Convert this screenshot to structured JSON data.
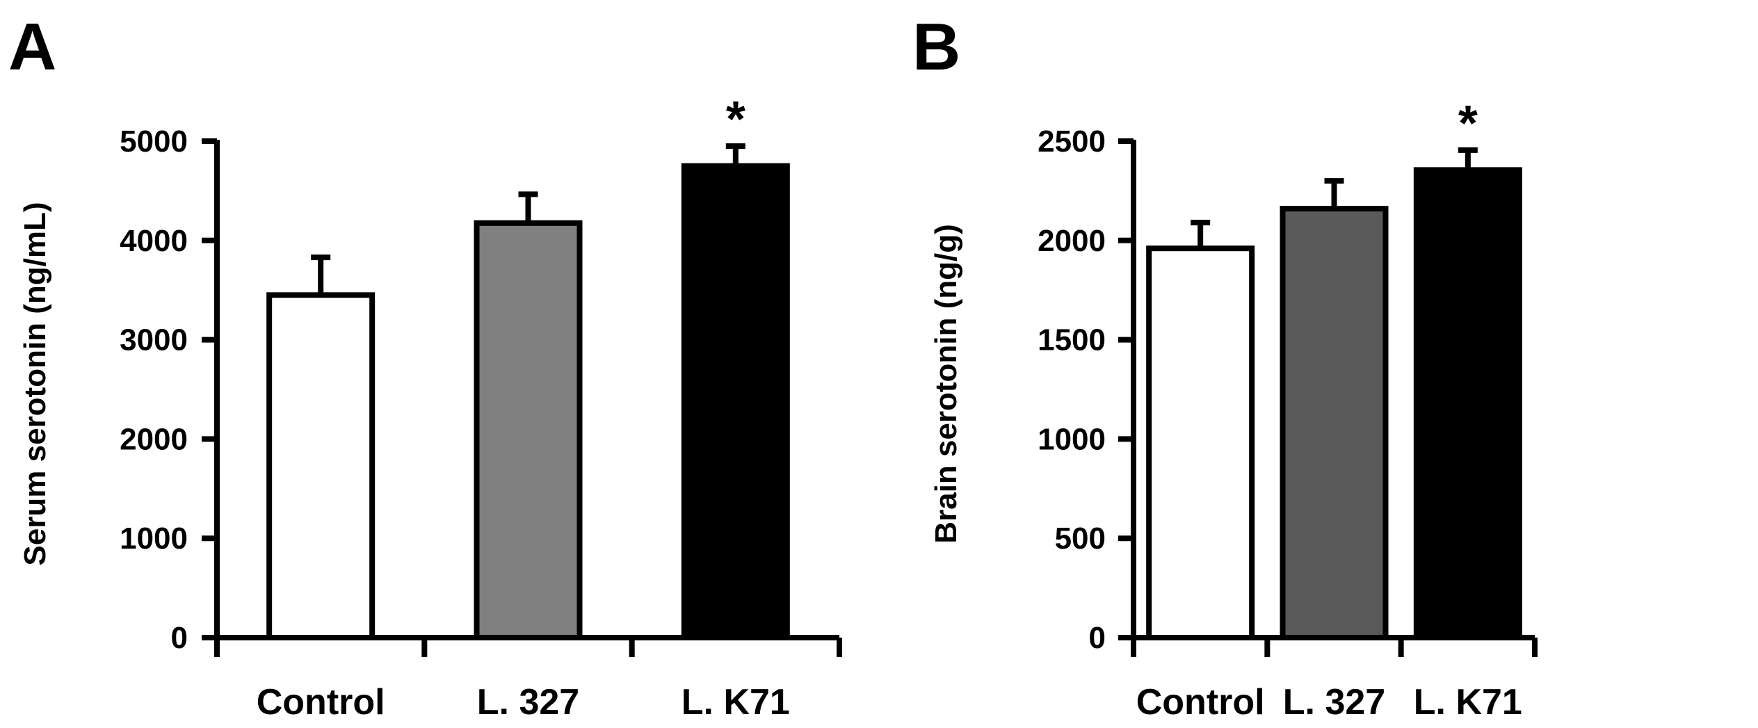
{
  "chart_data": [
    {
      "type": "bar",
      "panel_label": "A",
      "title": "",
      "ylabel": "Serum  serotonin  (ng/mL)",
      "xlabel": "",
      "categories": [
        "Control",
        "L. 327",
        "L. K71"
      ],
      "values": [
        3450,
        4175,
        4750
      ],
      "errors": [
        380,
        290,
        200
      ],
      "bar_colors": [
        "#ffffff",
        "#808080",
        "#000000"
      ],
      "significance": [
        "",
        "",
        "*"
      ],
      "ylim": [
        0,
        5000
      ],
      "yticks": [
        0,
        1000,
        2000,
        3000,
        4000,
        5000
      ],
      "ytick_labels": [
        "0",
        "1000",
        "2000",
        "3000",
        "4000",
        "5000"
      ],
      "grid": false
    },
    {
      "type": "bar",
      "panel_label": "B",
      "title": "",
      "ylabel": "Brain serotonin (ng/g)",
      "xlabel": "",
      "categories": [
        "Control",
        "L. 327",
        "L. K71"
      ],
      "values": [
        1960,
        2160,
        2355
      ],
      "errors": [
        130,
        140,
        100
      ],
      "bar_colors": [
        "#ffffff",
        "#5a5a5a",
        "#000000"
      ],
      "significance": [
        "",
        "",
        "*"
      ],
      "ylim": [
        0,
        2500
      ],
      "yticks": [
        0,
        500,
        1000,
        1500,
        2000,
        2500
      ],
      "ytick_labels": [
        "0",
        "500",
        "1000",
        "1500",
        "2000",
        "2500"
      ],
      "grid": false
    }
  ]
}
